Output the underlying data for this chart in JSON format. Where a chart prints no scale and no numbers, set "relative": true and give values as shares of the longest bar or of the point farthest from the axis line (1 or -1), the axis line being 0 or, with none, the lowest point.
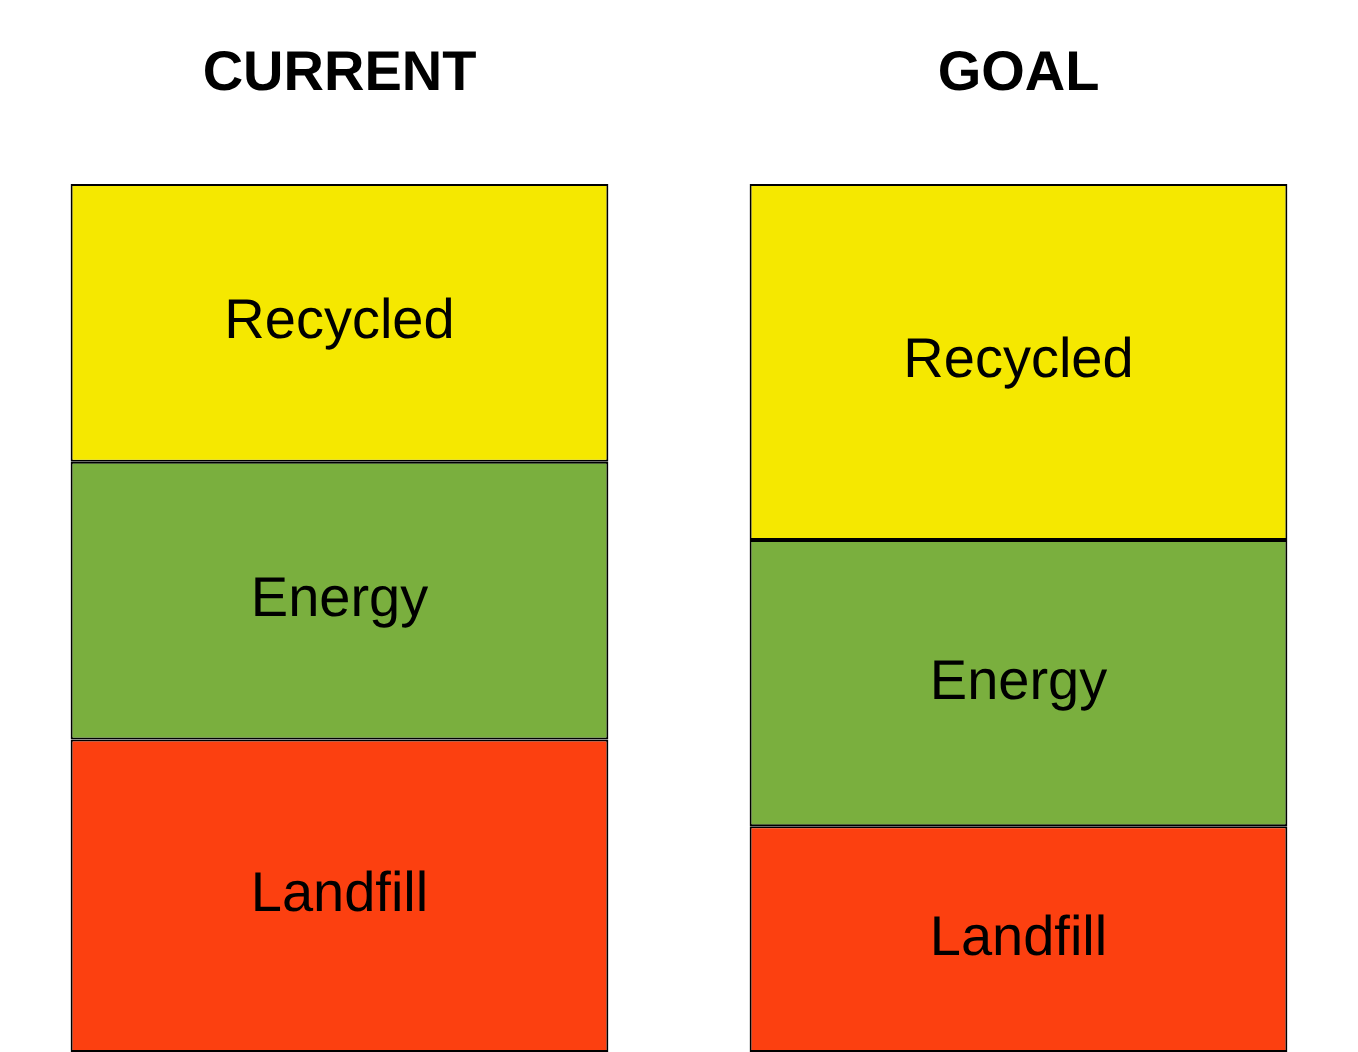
{
  "chart_data": {
    "type": "bar",
    "categories": [
      "CURRENT",
      "GOAL"
    ],
    "stacked": true,
    "relative": true,
    "series": [
      {
        "name": "Landfill",
        "color": "#fc4010",
        "values": [
          0.36,
          0.26
        ]
      },
      {
        "name": "Energy",
        "color": "#7aaf3e",
        "values": [
          0.32,
          0.33
        ]
      },
      {
        "name": "Recycled",
        "color": "#f5e800",
        "values": [
          0.32,
          0.41
        ]
      }
    ]
  }
}
